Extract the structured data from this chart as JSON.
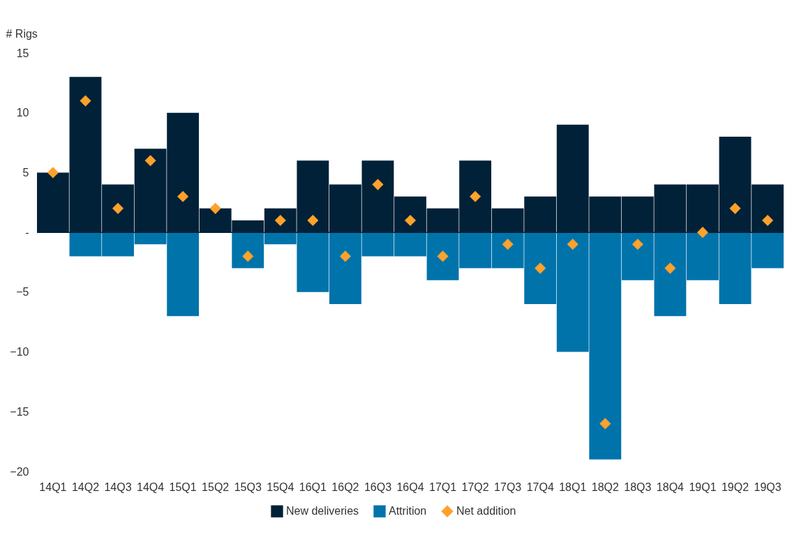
{
  "chart_data": {
    "type": "bar",
    "ylabel": "# Rigs",
    "stacked": true,
    "legend": "bottom",
    "grid": false,
    "categories": [
      "14Q1",
      "14Q2",
      "14Q3",
      "14Q4",
      "15Q1",
      "15Q2",
      "15Q3",
      "15Q4",
      "16Q1",
      "16Q2",
      "16Q3",
      "16Q4",
      "17Q1",
      "17Q2",
      "17Q3",
      "17Q4",
      "18Q1",
      "18Q2",
      "18Q3",
      "18Q4",
      "19Q1",
      "19Q2",
      "19Q3"
    ],
    "series": [
      {
        "name": "New deliveries",
        "color": "#002138",
        "values": [
          5,
          13,
          4,
          7,
          10,
          2,
          1,
          2,
          6,
          4,
          6,
          3,
          2,
          6,
          2,
          3,
          9,
          3,
          3,
          4,
          4,
          8,
          4
        ]
      },
      {
        "name": "Attrition",
        "color": "#0073ab",
        "values": [
          0,
          -2,
          -2,
          -1,
          -7,
          0,
          -3,
          -1,
          -5,
          -6,
          -2,
          -2,
          -4,
          -3,
          -3,
          -6,
          -10,
          -19,
          -4,
          -7,
          -4,
          -6,
          -3
        ]
      },
      {
        "name": "Net addition",
        "color": "#ffa12b",
        "type": "scatter",
        "marker": "diamond",
        "values": [
          5,
          11,
          2,
          6,
          3,
          2,
          -2,
          1,
          1,
          -2,
          4,
          1,
          -2,
          3,
          -1,
          -3,
          -1,
          -16,
          -1,
          -3,
          0,
          2,
          1
        ]
      }
    ],
    "ylim": [
      -20,
      15
    ],
    "yticks": [
      -20,
      -15,
      -10,
      -5,
      {
        "value": 0,
        "label": "-"
      },
      5,
      10,
      15
    ],
    "ref_lines": [
      {
        "axis": "y",
        "value": 0,
        "color": "#002138"
      }
    ]
  }
}
